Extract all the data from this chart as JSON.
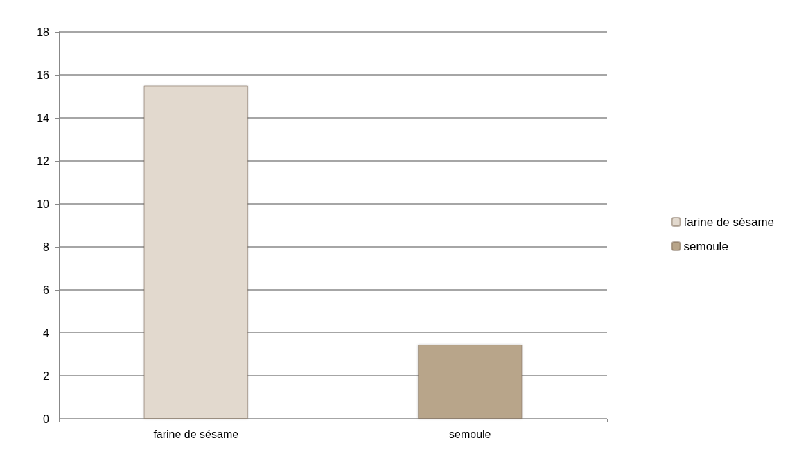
{
  "chart_data": {
    "type": "bar",
    "categories": [
      "farine de sésame",
      "semoule"
    ],
    "series": [
      {
        "name": "farine de sésame",
        "color": "#e2d9ce",
        "values": [
          15.5,
          null
        ]
      },
      {
        "name": "semoule",
        "color": "#b8a58a",
        "values": [
          null,
          3.45
        ]
      }
    ],
    "ylim": [
      0,
      18
    ],
    "yticks": [
      0,
      2,
      4,
      6,
      8,
      10,
      12,
      14,
      16,
      18
    ],
    "grid": "y",
    "legend": "right"
  }
}
